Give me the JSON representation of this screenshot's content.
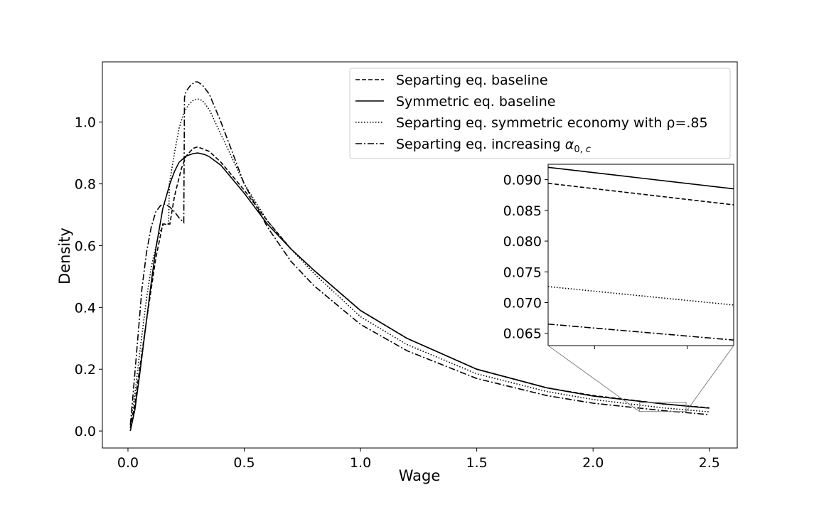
{
  "chart_data": {
    "type": "line",
    "xlabel": "Wage",
    "ylabel": "Density",
    "xlim": [
      -0.11,
      2.62
    ],
    "ylim": [
      -0.055,
      1.195
    ],
    "xticks": [
      0.0,
      0.5,
      1.0,
      1.5,
      2.0,
      2.5
    ],
    "xtick_labels": [
      "0.0",
      "0.5",
      "1.0",
      "1.5",
      "2.0",
      "2.5"
    ],
    "yticks": [
      0.0,
      0.2,
      0.4,
      0.6,
      0.8,
      1.0
    ],
    "ytick_labels": [
      "0.0",
      "0.2",
      "0.4",
      "0.6",
      "0.8",
      "1.0"
    ],
    "grid": false,
    "legend_position": "top-right",
    "series": [
      {
        "name": "Separting eq. baseline",
        "style": "dashed",
        "x": [
          0.01,
          0.03,
          0.05,
          0.08,
          0.1,
          0.12,
          0.15,
          0.18,
          0.2,
          0.23,
          0.25,
          0.28,
          0.3,
          0.35,
          0.4,
          0.5,
          0.6,
          0.7,
          0.8,
          1.0,
          1.2,
          1.5,
          1.8,
          2.0,
          2.3,
          2.5
        ],
        "y": [
          0.01,
          0.09,
          0.2,
          0.36,
          0.46,
          0.56,
          0.67,
          0.67,
          0.76,
          0.85,
          0.89,
          0.915,
          0.92,
          0.905,
          0.87,
          0.78,
          0.68,
          0.59,
          0.52,
          0.39,
          0.3,
          0.2,
          0.14,
          0.115,
          0.088,
          0.075
        ]
      },
      {
        "name": "Symmetric eq. baseline",
        "style": "solid",
        "x": [
          0.01,
          0.03,
          0.05,
          0.08,
          0.1,
          0.12,
          0.15,
          0.18,
          0.2,
          0.22,
          0.25,
          0.28,
          0.3,
          0.33,
          0.35,
          0.4,
          0.5,
          0.6,
          0.7,
          0.8,
          1.0,
          1.2,
          1.5,
          1.8,
          2.0,
          2.3,
          2.5
        ],
        "y": [
          0.0,
          0.07,
          0.18,
          0.36,
          0.48,
          0.59,
          0.72,
          0.8,
          0.84,
          0.87,
          0.89,
          0.898,
          0.9,
          0.895,
          0.888,
          0.86,
          0.77,
          0.67,
          0.59,
          0.52,
          0.39,
          0.3,
          0.2,
          0.14,
          0.113,
          0.088,
          0.074
        ]
      },
      {
        "name": "Separting eq. symmetric economy with ρ=.85",
        "style": "dotted",
        "x": [
          0.01,
          0.03,
          0.05,
          0.08,
          0.1,
          0.13,
          0.15,
          0.175,
          0.178,
          0.2,
          0.22,
          0.24,
          0.26,
          0.28,
          0.3,
          0.32,
          0.35,
          0.4,
          0.45,
          0.5,
          0.6,
          0.7,
          0.8,
          1.0,
          1.2,
          1.5,
          1.8,
          2.0,
          2.3,
          2.5
        ],
        "y": [
          0.02,
          0.12,
          0.25,
          0.43,
          0.53,
          0.63,
          0.665,
          0.672,
          0.8,
          0.9,
          0.98,
          1.03,
          1.055,
          1.07,
          1.075,
          1.07,
          1.04,
          0.96,
          0.88,
          0.8,
          0.68,
          0.59,
          0.51,
          0.37,
          0.28,
          0.185,
          0.128,
          0.102,
          0.075,
          0.062
        ]
      },
      {
        "name": "Separting eq. increasing α0,c",
        "name_html": "Separting eq. increasing <tspan font-style=\"italic\">α</tspan><tspan font-size=\"13\" dy=\"5\">0, <tspan font-style=\"italic\">c</tspan></tspan>",
        "style": "dashdot",
        "x": [
          0.01,
          0.02,
          0.04,
          0.06,
          0.08,
          0.1,
          0.12,
          0.14,
          0.16,
          0.18,
          0.2,
          0.22,
          0.24,
          0.243,
          0.25,
          0.27,
          0.29,
          0.3,
          0.32,
          0.35,
          0.4,
          0.45,
          0.5,
          0.6,
          0.7,
          0.8,
          1.0,
          1.2,
          1.5,
          1.8,
          2.0,
          2.3,
          2.5
        ],
        "y": [
          0.02,
          0.1,
          0.28,
          0.46,
          0.58,
          0.66,
          0.71,
          0.73,
          0.735,
          0.725,
          0.71,
          0.69,
          0.675,
          1.08,
          1.1,
          1.12,
          1.13,
          1.13,
          1.12,
          1.09,
          1.0,
          0.9,
          0.8,
          0.66,
          0.55,
          0.47,
          0.345,
          0.26,
          0.17,
          0.115,
          0.09,
          0.066,
          0.053
        ]
      }
    ],
    "inset": {
      "xlim": [
        2.2,
        2.4
      ],
      "ylim": [
        0.063,
        0.0925
      ],
      "yticks": [
        0.065,
        0.07,
        0.075,
        0.08,
        0.085,
        0.09
      ],
      "ytick_labels": [
        "0.065",
        "0.070",
        "0.075",
        "0.080",
        "0.085",
        "0.090"
      ],
      "xticks": [
        2.25,
        2.35
      ],
      "lines": [
        {
          "style": "solid",
          "y": [
            0.092,
            0.0885
          ]
        },
        {
          "style": "dashed",
          "y": [
            0.0894,
            0.0859
          ]
        },
        {
          "style": "dotted",
          "y": [
            0.0726,
            0.0696
          ]
        },
        {
          "style": "dashdot",
          "y": [
            0.0665,
            0.0639
          ]
        }
      ]
    }
  }
}
